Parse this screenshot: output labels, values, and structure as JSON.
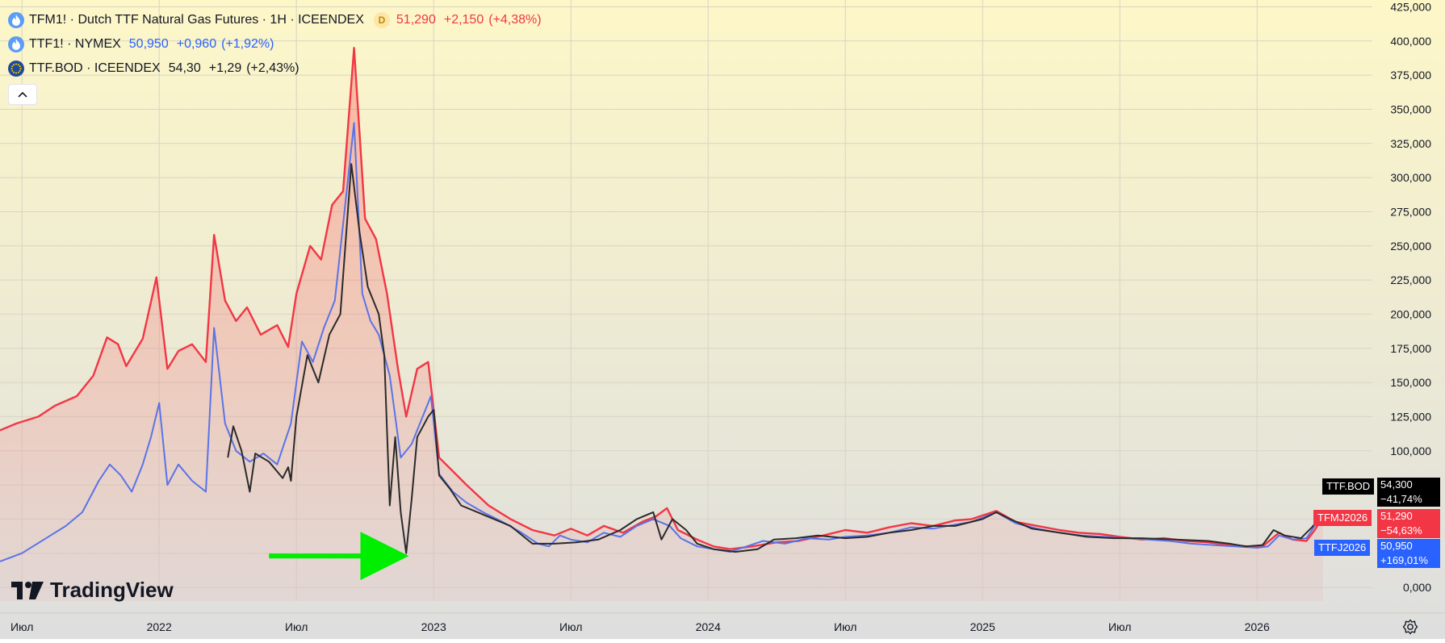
{
  "legend": [
    {
      "symbol": "TFM1! · Dutch TTF Natural Gas Futures · 1H · ICEENDEX",
      "badge": "D",
      "last": "51,290",
      "change": "+2,150",
      "change_pct": "(+4,38%)",
      "color": "#f23645",
      "icon": "flame-icon"
    },
    {
      "symbol": "TTF1! · NYMEX",
      "last": "50,950",
      "change": "+0,960",
      "change_pct": "(+1,92%)",
      "color": "#2962ff",
      "icon": "flame-icon"
    },
    {
      "symbol": "TTF.BOD · ICEENDEX",
      "last": "54,30",
      "change": "+1,29",
      "change_pct": "(+2,43%)",
      "color": "#131722",
      "icon": "eu-flag-icon"
    }
  ],
  "axis_tags": {
    "bod": {
      "label": "TTF.BOD",
      "value": "54,300",
      "pct": "−41,74%",
      "color": "#000000"
    },
    "tfm": {
      "label": "TFMJ2026",
      "value": "51,290",
      "pct": "−54,63%",
      "color": "#f23645"
    },
    "ttf": {
      "label": "TTFJ2026",
      "value": "50,950",
      "pct": "+169,01%",
      "color": "#2962ff"
    }
  },
  "brand": "TradingView",
  "colors": {
    "bg_top": "#fdf7c8",
    "bg_bottom": "#dedede",
    "tfm": "#f23645",
    "ttf": "#5b73e8",
    "bod": "#2a2a2a",
    "arrow": "#00ee00"
  },
  "chart_data": {
    "type": "line",
    "ylim": [
      -10000,
      430000
    ],
    "xlim": [
      2021.42,
      2026.42
    ],
    "y_ticks": [
      0,
      25000,
      50000,
      75000,
      100000,
      125000,
      150000,
      175000,
      200000,
      225000,
      250000,
      275000,
      300000,
      325000,
      350000,
      375000,
      400000,
      425000
    ],
    "y_tick_labels": [
      "0,000",
      "25,000",
      "50,000",
      "75,000",
      "100,000",
      "125,000",
      "150,000",
      "175,000",
      "200,000",
      "225,000",
      "250,000",
      "275,000",
      "300,000",
      "325,000",
      "350,000",
      "375,000",
      "400,000",
      "425,000"
    ],
    "x_ticks": [
      {
        "x": 2021.5,
        "label": "Июл"
      },
      {
        "x": 2022.0,
        "label": "2022"
      },
      {
        "x": 2022.5,
        "label": "Июл"
      },
      {
        "x": 2023.0,
        "label": "2023"
      },
      {
        "x": 2023.5,
        "label": "Июл"
      },
      {
        "x": 2024.0,
        "label": "2024"
      },
      {
        "x": 2024.5,
        "label": "Июл"
      },
      {
        "x": 2025.0,
        "label": "2025"
      },
      {
        "x": 2025.5,
        "label": "Июл"
      },
      {
        "x": 2026.0,
        "label": "2026"
      }
    ],
    "grid": true,
    "series": [
      {
        "name": "TFM1!",
        "area": true,
        "points": [
          [
            2021.42,
            115000
          ],
          [
            2021.48,
            120000
          ],
          [
            2021.56,
            125000
          ],
          [
            2021.62,
            133000
          ],
          [
            2021.7,
            140000
          ],
          [
            2021.76,
            155000
          ],
          [
            2021.81,
            183000
          ],
          [
            2021.85,
            178000
          ],
          [
            2021.88,
            162000
          ],
          [
            2021.94,
            182000
          ],
          [
            2021.99,
            227000
          ],
          [
            2022.03,
            160000
          ],
          [
            2022.07,
            173000
          ],
          [
            2022.12,
            178000
          ],
          [
            2022.17,
            165000
          ],
          [
            2022.2,
            258000
          ],
          [
            2022.24,
            210000
          ],
          [
            2022.28,
            195000
          ],
          [
            2022.32,
            205000
          ],
          [
            2022.37,
            185000
          ],
          [
            2022.43,
            192000
          ],
          [
            2022.47,
            176000
          ],
          [
            2022.5,
            215000
          ],
          [
            2022.55,
            250000
          ],
          [
            2022.59,
            240000
          ],
          [
            2022.63,
            280000
          ],
          [
            2022.67,
            290000
          ],
          [
            2022.71,
            395000
          ],
          [
            2022.75,
            270000
          ],
          [
            2022.79,
            255000
          ],
          [
            2022.83,
            215000
          ],
          [
            2022.87,
            160000
          ],
          [
            2022.9,
            125000
          ],
          [
            2022.94,
            160000
          ],
          [
            2022.98,
            165000
          ],
          [
            2023.02,
            95000
          ],
          [
            2023.07,
            85000
          ],
          [
            2023.12,
            75000
          ],
          [
            2023.2,
            60000
          ],
          [
            2023.28,
            50000
          ],
          [
            2023.36,
            42000
          ],
          [
            2023.44,
            38000
          ],
          [
            2023.5,
            43000
          ],
          [
            2023.56,
            38000
          ],
          [
            2023.62,
            45000
          ],
          [
            2023.69,
            40000
          ],
          [
            2023.76,
            48000
          ],
          [
            2023.81,
            52000
          ],
          [
            2023.85,
            58000
          ],
          [
            2023.89,
            42000
          ],
          [
            2023.96,
            35000
          ],
          [
            2024.02,
            30000
          ],
          [
            2024.08,
            28000
          ],
          [
            2024.16,
            30000
          ],
          [
            2024.25,
            33000
          ],
          [
            2024.33,
            34000
          ],
          [
            2024.42,
            38000
          ],
          [
            2024.5,
            42000
          ],
          [
            2024.58,
            40000
          ],
          [
            2024.66,
            44000
          ],
          [
            2024.74,
            47000
          ],
          [
            2024.82,
            45000
          ],
          [
            2024.9,
            49000
          ],
          [
            2024.96,
            50000
          ],
          [
            2025.05,
            56000
          ],
          [
            2025.12,
            48000
          ],
          [
            2025.2,
            45000
          ],
          [
            2025.28,
            42000
          ],
          [
            2025.35,
            40000
          ],
          [
            2025.43,
            39000
          ],
          [
            2025.5,
            37000
          ],
          [
            2025.58,
            35000
          ],
          [
            2025.66,
            36000
          ],
          [
            2025.74,
            34000
          ],
          [
            2025.82,
            33000
          ],
          [
            2025.9,
            31000
          ],
          [
            2025.97,
            30000
          ],
          [
            2026.02,
            30000
          ],
          [
            2026.08,
            40000
          ],
          [
            2026.13,
            35000
          ],
          [
            2026.18,
            34000
          ],
          [
            2026.21,
            42000
          ],
          [
            2026.24,
            51290
          ]
        ]
      },
      {
        "name": "TTF1!",
        "area": false,
        "points": [
          [
            2021.42,
            19000
          ],
          [
            2021.5,
            25000
          ],
          [
            2021.58,
            35000
          ],
          [
            2021.66,
            45000
          ],
          [
            2021.72,
            55000
          ],
          [
            2021.78,
            78000
          ],
          [
            2021.82,
            90000
          ],
          [
            2021.86,
            82000
          ],
          [
            2021.9,
            70000
          ],
          [
            2021.94,
            90000
          ],
          [
            2021.97,
            110000
          ],
          [
            2022.0,
            135000
          ],
          [
            2022.03,
            75000
          ],
          [
            2022.07,
            90000
          ],
          [
            2022.12,
            78000
          ],
          [
            2022.17,
            70000
          ],
          [
            2022.2,
            190000
          ],
          [
            2022.24,
            120000
          ],
          [
            2022.28,
            100000
          ],
          [
            2022.33,
            92000
          ],
          [
            2022.38,
            98000
          ],
          [
            2022.43,
            90000
          ],
          [
            2022.48,
            120000
          ],
          [
            2022.52,
            180000
          ],
          [
            2022.56,
            165000
          ],
          [
            2022.6,
            190000
          ],
          [
            2022.64,
            210000
          ],
          [
            2022.71,
            340000
          ],
          [
            2022.74,
            215000
          ],
          [
            2022.77,
            195000
          ],
          [
            2022.8,
            185000
          ],
          [
            2022.84,
            155000
          ],
          [
            2022.88,
            95000
          ],
          [
            2022.92,
            105000
          ],
          [
            2022.96,
            125000
          ],
          [
            2022.99,
            140000
          ],
          [
            2023.02,
            83000
          ],
          [
            2023.07,
            70000
          ],
          [
            2023.12,
            62000
          ],
          [
            2023.18,
            55000
          ],
          [
            2023.25,
            48000
          ],
          [
            2023.32,
            40000
          ],
          [
            2023.38,
            32000
          ],
          [
            2023.42,
            30000
          ],
          [
            2023.46,
            38000
          ],
          [
            2023.5,
            35000
          ],
          [
            2023.56,
            33000
          ],
          [
            2023.62,
            40000
          ],
          [
            2023.68,
            37000
          ],
          [
            2023.74,
            45000
          ],
          [
            2023.8,
            50000
          ],
          [
            2023.86,
            45000
          ],
          [
            2023.9,
            36000
          ],
          [
            2023.96,
            30000
          ],
          [
            2024.02,
            28000
          ],
          [
            2024.08,
            26000
          ],
          [
            2024.14,
            30000
          ],
          [
            2024.2,
            34000
          ],
          [
            2024.28,
            32000
          ],
          [
            2024.36,
            36000
          ],
          [
            2024.44,
            35000
          ],
          [
            2024.5,
            37000
          ],
          [
            2024.58,
            38000
          ],
          [
            2024.66,
            40000
          ],
          [
            2024.74,
            44000
          ],
          [
            2024.82,
            43000
          ],
          [
            2024.9,
            46000
          ],
          [
            2024.96,
            48000
          ],
          [
            2025.05,
            55000
          ],
          [
            2025.12,
            47000
          ],
          [
            2025.2,
            43000
          ],
          [
            2025.28,
            40000
          ],
          [
            2025.36,
            38000
          ],
          [
            2025.44,
            37000
          ],
          [
            2025.52,
            36000
          ],
          [
            2025.6,
            35000
          ],
          [
            2025.68,
            34000
          ],
          [
            2025.76,
            32000
          ],
          [
            2025.84,
            31000
          ],
          [
            2025.92,
            30000
          ],
          [
            2026.0,
            29000
          ],
          [
            2026.04,
            30000
          ],
          [
            2026.08,
            38000
          ],
          [
            2026.13,
            35000
          ],
          [
            2026.18,
            36000
          ],
          [
            2026.21,
            45000
          ],
          [
            2026.24,
            50950
          ]
        ]
      },
      {
        "name": "TTF.BOD",
        "area": false,
        "points": [
          [
            2022.25,
            95000
          ],
          [
            2022.27,
            118000
          ],
          [
            2022.3,
            100000
          ],
          [
            2022.33,
            70000
          ],
          [
            2022.35,
            98000
          ],
          [
            2022.4,
            92000
          ],
          [
            2022.45,
            80000
          ],
          [
            2022.47,
            88000
          ],
          [
            2022.48,
            78000
          ],
          [
            2022.5,
            125000
          ],
          [
            2022.54,
            170000
          ],
          [
            2022.58,
            150000
          ],
          [
            2022.62,
            185000
          ],
          [
            2022.66,
            200000
          ],
          [
            2022.7,
            310000
          ],
          [
            2022.73,
            260000
          ],
          [
            2022.76,
            220000
          ],
          [
            2022.8,
            200000
          ],
          [
            2022.82,
            170000
          ],
          [
            2022.84,
            60000
          ],
          [
            2022.86,
            110000
          ],
          [
            2022.88,
            55000
          ],
          [
            2022.9,
            25000
          ],
          [
            2022.92,
            65000
          ],
          [
            2022.94,
            110000
          ],
          [
            2022.98,
            125000
          ],
          [
            2023.0,
            130000
          ],
          [
            2023.02,
            82000
          ],
          [
            2023.06,
            72000
          ],
          [
            2023.1,
            60000
          ],
          [
            2023.16,
            55000
          ],
          [
            2023.22,
            50000
          ],
          [
            2023.28,
            45000
          ],
          [
            2023.36,
            32000
          ],
          [
            2023.44,
            32000
          ],
          [
            2023.52,
            33000
          ],
          [
            2023.6,
            35000
          ],
          [
            2023.68,
            42000
          ],
          [
            2023.74,
            50000
          ],
          [
            2023.8,
            55000
          ],
          [
            2023.83,
            35000
          ],
          [
            2023.87,
            50000
          ],
          [
            2023.92,
            42000
          ],
          [
            2023.96,
            32000
          ],
          [
            2024.02,
            28000
          ],
          [
            2024.1,
            26000
          ],
          [
            2024.18,
            28000
          ],
          [
            2024.24,
            35000
          ],
          [
            2024.32,
            36000
          ],
          [
            2024.4,
            38000
          ],
          [
            2024.5,
            36000
          ],
          [
            2024.58,
            37000
          ],
          [
            2024.66,
            40000
          ],
          [
            2024.74,
            42000
          ],
          [
            2024.82,
            45000
          ],
          [
            2024.9,
            45000
          ],
          [
            2025.0,
            50000
          ],
          [
            2025.05,
            55000
          ],
          [
            2025.1,
            50000
          ],
          [
            2025.18,
            43000
          ],
          [
            2025.28,
            40000
          ],
          [
            2025.38,
            37000
          ],
          [
            2025.48,
            36000
          ],
          [
            2025.58,
            36000
          ],
          [
            2025.7,
            35000
          ],
          [
            2025.82,
            34000
          ],
          [
            2025.9,
            32000
          ],
          [
            2025.96,
            30000
          ],
          [
            2026.02,
            31000
          ],
          [
            2026.06,
            42000
          ],
          [
            2026.1,
            38000
          ],
          [
            2026.16,
            36000
          ],
          [
            2026.2,
            44000
          ],
          [
            2026.24,
            54300
          ]
        ]
      }
    ],
    "annotations": [
      {
        "type": "arrow",
        "from": [
          2022.4,
          23000
        ],
        "to": [
          2022.88,
          23000
        ]
      }
    ]
  }
}
